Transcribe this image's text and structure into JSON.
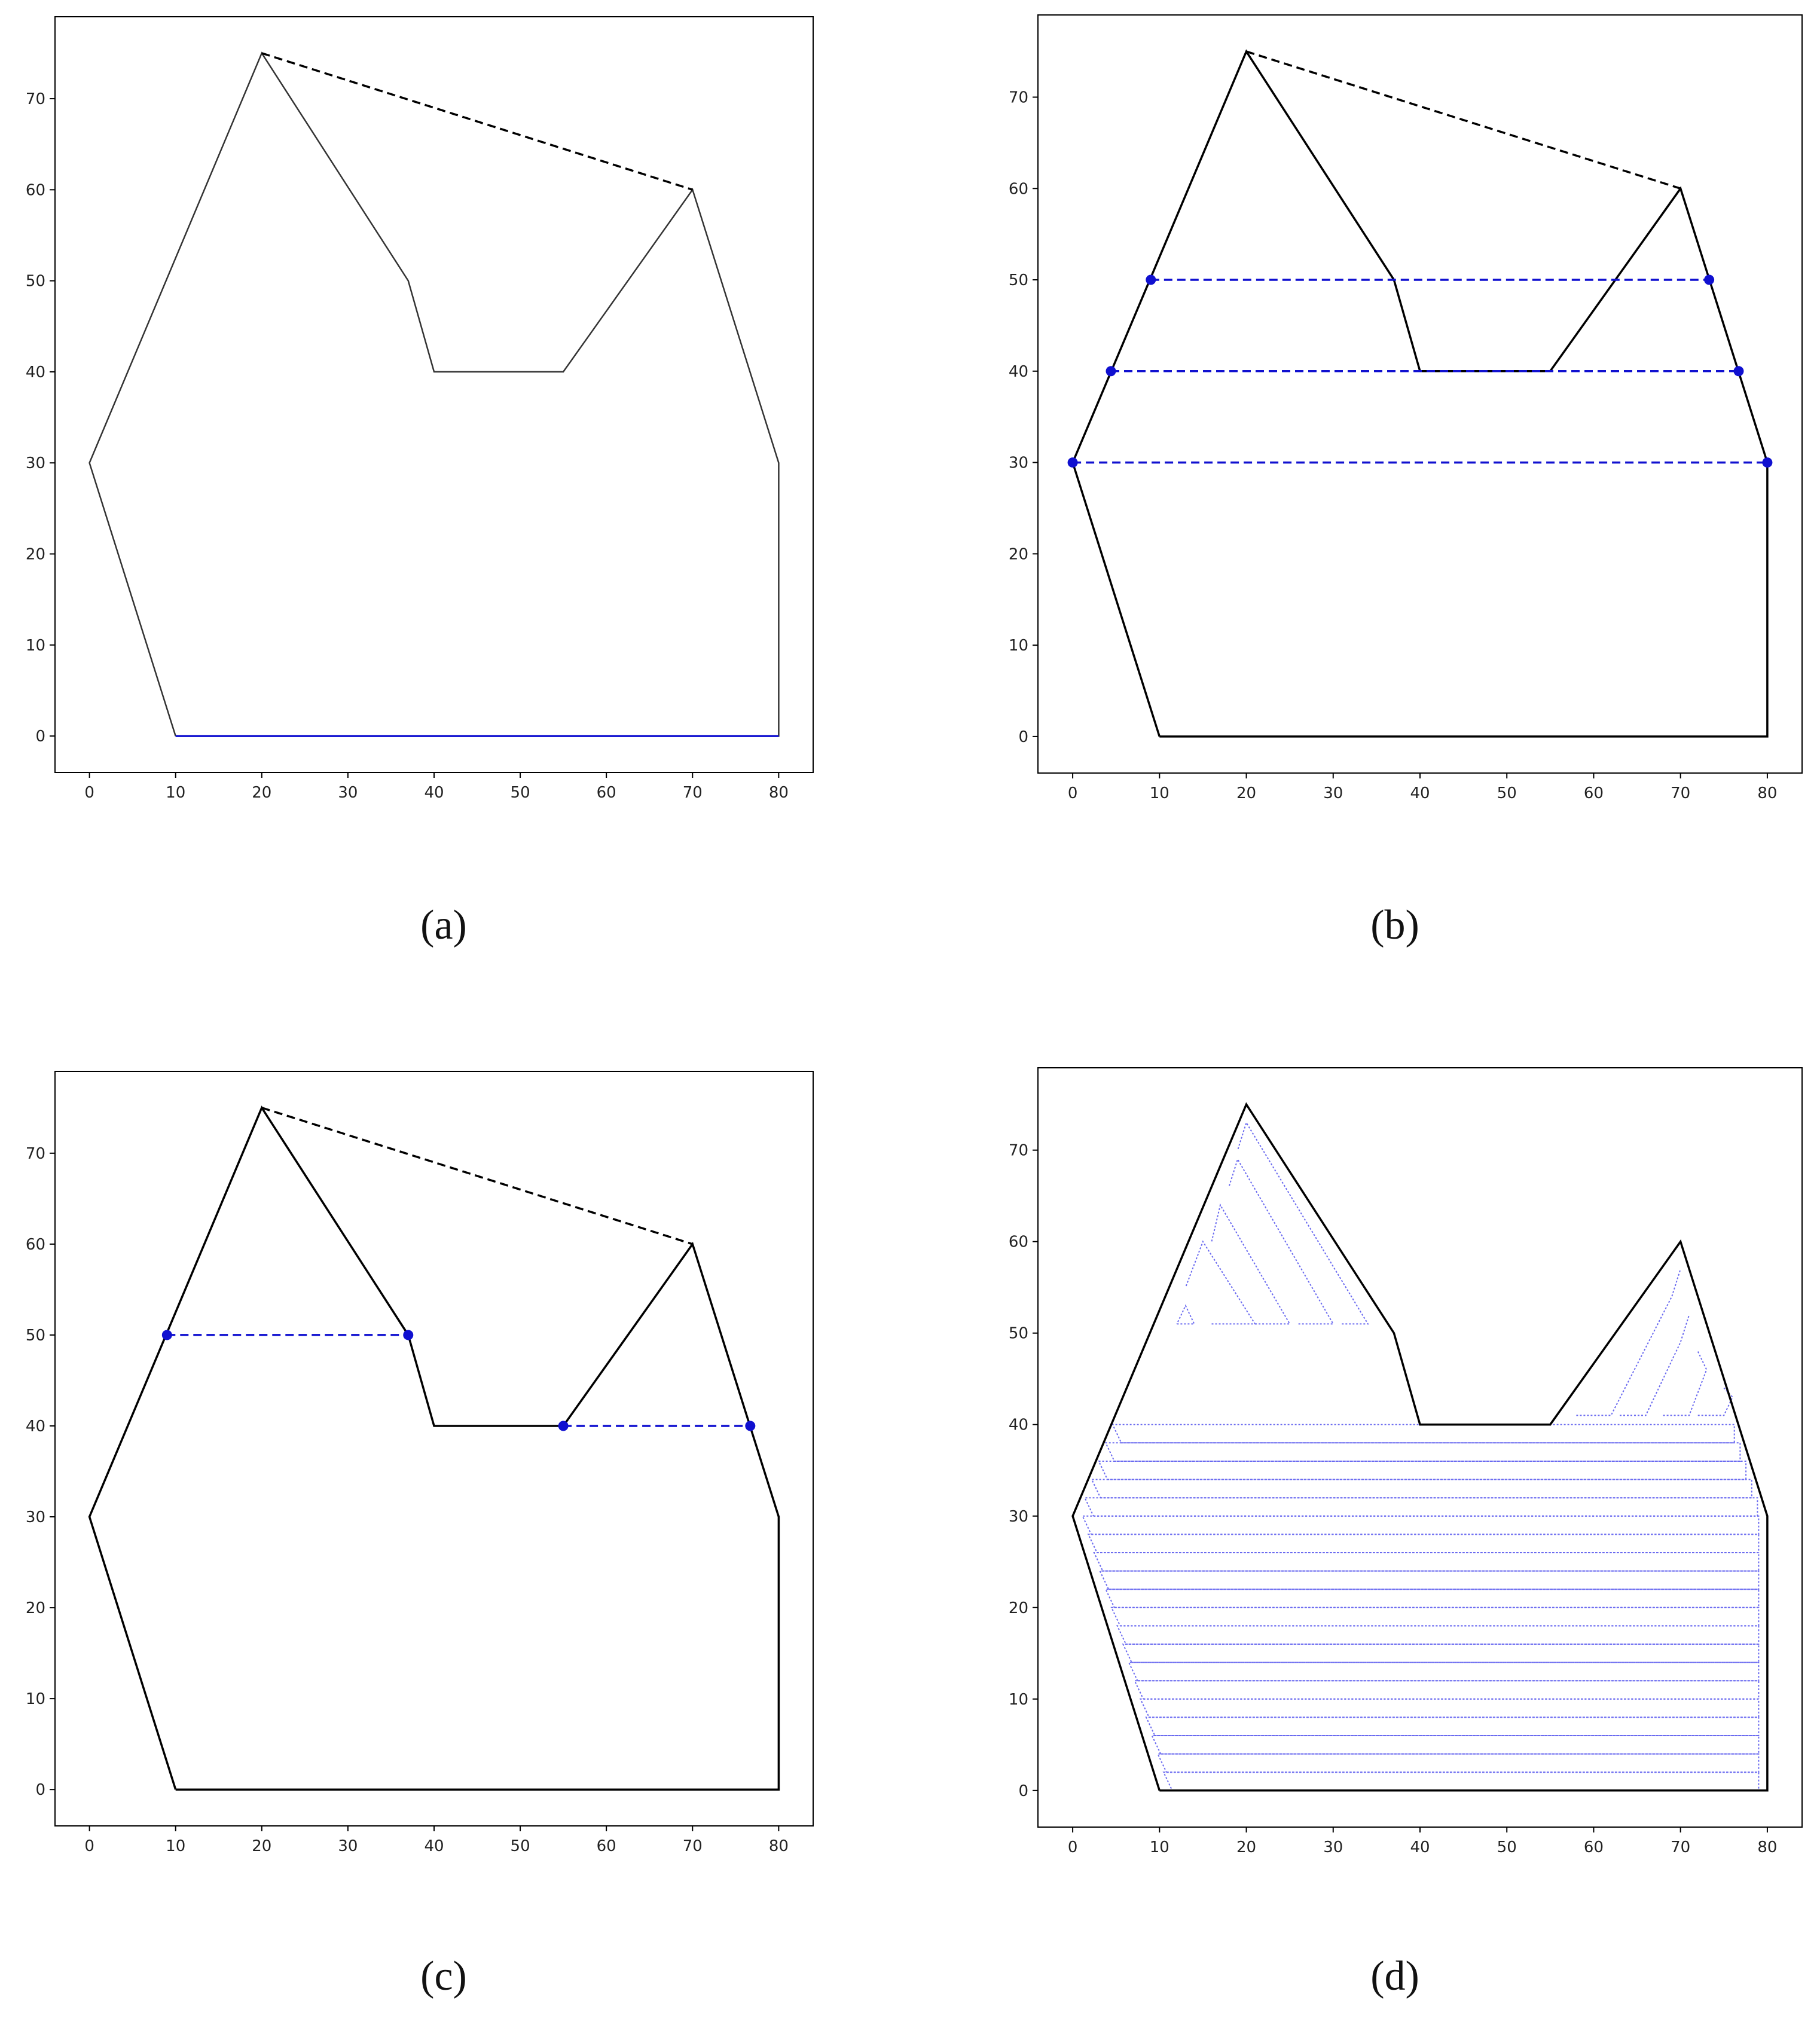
{
  "chart_data": [
    {
      "type": "line",
      "label": "(a)",
      "xticks": [
        "0",
        "10",
        "20",
        "30",
        "40",
        "50",
        "60",
        "70",
        "80"
      ],
      "yticks": [
        "0",
        "10",
        "20",
        "30",
        "40",
        "50",
        "60",
        "70"
      ],
      "xlim": [
        -4,
        84
      ],
      "ylim": [
        -4,
        79
      ],
      "grid": false,
      "polygon": [
        [
          10,
          0
        ],
        [
          80,
          0
        ],
        [
          80,
          30
        ],
        [
          70,
          60
        ],
        [
          55,
          40
        ],
        [
          40,
          40
        ],
        [
          37,
          50
        ],
        [
          20,
          75
        ],
        [
          0,
          30
        ],
        [
          10,
          0
        ]
      ],
      "polygon_color": "#333333",
      "hull_edge": {
        "points": [
          [
            20,
            75
          ],
          [
            70,
            60
          ]
        ],
        "style": "dashed",
        "color": "#000000"
      },
      "highlight_edge": {
        "points": [
          [
            10,
            0
          ],
          [
            80,
            0
          ]
        ],
        "color": "#1010d0"
      },
      "split_lines": [],
      "split_points": [],
      "coverage_path": null
    },
    {
      "type": "line",
      "label": "(b)",
      "xticks": [
        "0",
        "10",
        "20",
        "30",
        "40",
        "50",
        "60",
        "70",
        "80"
      ],
      "yticks": [
        "0",
        "10",
        "20",
        "30",
        "40",
        "50",
        "60",
        "70"
      ],
      "xlim": [
        -4,
        84
      ],
      "ylim": [
        -4,
        79
      ],
      "grid": false,
      "polygon": [
        [
          10,
          0
        ],
        [
          80,
          0
        ],
        [
          80,
          30
        ],
        [
          70,
          60
        ],
        [
          55,
          40
        ],
        [
          40,
          40
        ],
        [
          37,
          50
        ],
        [
          20,
          75
        ],
        [
          0,
          30
        ],
        [
          10,
          0
        ]
      ],
      "polygon_color": "#000000",
      "hull_edge": {
        "points": [
          [
            20,
            75
          ],
          [
            70,
            60
          ]
        ],
        "style": "dashed",
        "color": "#000000"
      },
      "highlight_edge": null,
      "split_lines": [
        {
          "points": [
            [
              9,
              50
            ],
            [
              73.3,
              50
            ]
          ],
          "style": "dashed",
          "color": "#1010d0"
        },
        {
          "points": [
            [
              4.4,
              40
            ],
            [
              76.7,
              40
            ]
          ],
          "style": "dashed",
          "color": "#1010d0"
        },
        {
          "points": [
            [
              0,
              30
            ],
            [
              80,
              30
            ]
          ],
          "style": "dashed",
          "color": "#1010d0"
        }
      ],
      "split_points": [
        [
          9,
          50
        ],
        [
          73.3,
          50
        ],
        [
          4.4,
          40
        ],
        [
          76.7,
          40
        ],
        [
          0,
          30
        ],
        [
          80,
          30
        ]
      ],
      "coverage_path": null
    },
    {
      "type": "line",
      "label": "(c)",
      "xticks": [
        "0",
        "10",
        "20",
        "30",
        "40",
        "50",
        "60",
        "70",
        "80"
      ],
      "yticks": [
        "0",
        "10",
        "20",
        "30",
        "40",
        "50",
        "60",
        "70"
      ],
      "xlim": [
        -4,
        84
      ],
      "ylim": [
        -4,
        79
      ],
      "grid": false,
      "polygon": [
        [
          10,
          0
        ],
        [
          80,
          0
        ],
        [
          80,
          30
        ],
        [
          70,
          60
        ],
        [
          55,
          40
        ],
        [
          40,
          40
        ],
        [
          37,
          50
        ],
        [
          20,
          75
        ],
        [
          0,
          30
        ],
        [
          10,
          0
        ]
      ],
      "polygon_color": "#000000",
      "hull_edge": {
        "points": [
          [
            20,
            75
          ],
          [
            70,
            60
          ]
        ],
        "style": "dashed",
        "color": "#000000"
      },
      "highlight_edge": null,
      "split_lines": [
        {
          "points": [
            [
              9,
              50
            ],
            [
              37,
              50
            ]
          ],
          "style": "dashed",
          "color": "#1010d0"
        },
        {
          "points": [
            [
              55,
              40
            ],
            [
              76.7,
              40
            ]
          ],
          "style": "dashed",
          "color": "#1010d0"
        }
      ],
      "split_points": [
        [
          9,
          50
        ],
        [
          37,
          50
        ],
        [
          55,
          40
        ],
        [
          76.7,
          40
        ]
      ],
      "coverage_path": null
    },
    {
      "type": "line",
      "label": "(d)",
      "xticks": [
        "0",
        "10",
        "20",
        "30",
        "40",
        "50",
        "60",
        "70",
        "80"
      ],
      "yticks": [
        "0",
        "10",
        "20",
        "30",
        "40",
        "50",
        "60",
        "70"
      ],
      "xlim": [
        -4,
        84
      ],
      "ylim": [
        -4,
        79
      ],
      "grid": false,
      "polygon": [
        [
          10,
          0
        ],
        [
          80,
          0
        ],
        [
          80,
          30
        ],
        [
          70,
          60
        ],
        [
          55,
          40
        ],
        [
          40,
          40
        ],
        [
          37,
          50
        ],
        [
          20,
          75
        ],
        [
          0,
          30
        ],
        [
          10,
          0
        ]
      ],
      "polygon_color": "#000000",
      "hull_edge": null,
      "highlight_edge": null,
      "split_lines": [],
      "split_points": [],
      "coverage_path": {
        "color": "#6a6af0",
        "style": "dotted",
        "bottom_region_rows": [
          1,
          3,
          5,
          7,
          9,
          11,
          13,
          15,
          17,
          19,
          21,
          23,
          25,
          27,
          29
        ],
        "left_region_rows": [
          31,
          33,
          35,
          37,
          39
        ],
        "left_peak_strips": [
          [
            [
              12,
              51
            ],
            [
              14,
              51
            ],
            [
              13,
              53
            ],
            [
              12,
              51
            ]
          ],
          [
            [
              16,
              51
            ],
            [
              21,
              51
            ],
            [
              15,
              60
            ],
            [
              13,
              55
            ]
          ],
          [
            [
              21,
              51
            ],
            [
              25,
              51
            ],
            [
              17,
              64
            ],
            [
              16,
              60
            ]
          ],
          [
            [
              26,
              51
            ],
            [
              30,
              51
            ],
            [
              19,
              69
            ],
            [
              18,
              66
            ]
          ],
          [
            [
              31,
              51
            ],
            [
              34,
              51
            ],
            [
              20,
              73
            ],
            [
              19,
              70
            ]
          ]
        ],
        "right_peak_strips": [
          [
            [
              58,
              41
            ],
            [
              62,
              41
            ],
            [
              69,
              54
            ],
            [
              70,
              57
            ]
          ],
          [
            [
              63,
              41
            ],
            [
              66,
              41
            ],
            [
              70,
              49
            ],
            [
              71,
              52
            ]
          ],
          [
            [
              68,
              41
            ],
            [
              71,
              41
            ],
            [
              73,
              46
            ],
            [
              72,
              48
            ]
          ],
          [
            [
              72,
              41
            ],
            [
              75,
              41
            ],
            [
              76,
              43
            ],
            [
              75,
              44
            ]
          ]
        ]
      }
    }
  ]
}
